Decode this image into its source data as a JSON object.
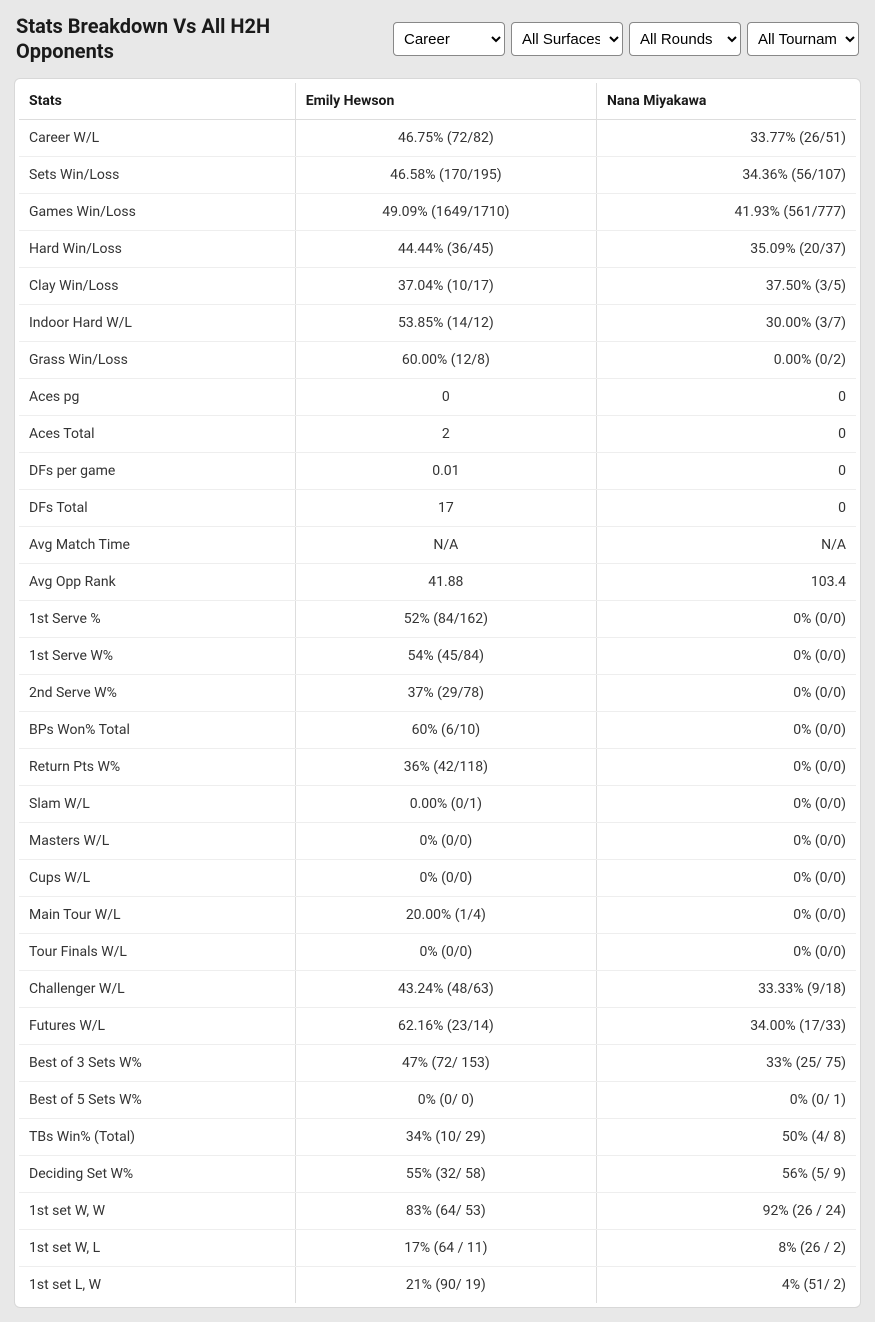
{
  "header": {
    "title": "Stats Breakdown Vs All H2H Opponents"
  },
  "filters": {
    "career": {
      "selected": "Career",
      "options": [
        "Career"
      ]
    },
    "surface": {
      "selected": "All Surfaces",
      "options": [
        "All Surfaces"
      ]
    },
    "round": {
      "selected": "All Rounds",
      "options": [
        "All Rounds"
      ]
    },
    "tournament": {
      "selected": "All Tournaments",
      "options": [
        "All Tournaments"
      ]
    }
  },
  "table": {
    "columns": [
      "Stats",
      "Emily Hewson",
      "Nana Miyakawa"
    ],
    "rows": [
      {
        "stat": "Career W/L",
        "p1": "46.75% (72/82)",
        "p2": "33.77% (26/51)"
      },
      {
        "stat": "Sets Win/Loss",
        "p1": "46.58% (170/195)",
        "p2": "34.36% (56/107)"
      },
      {
        "stat": "Games Win/Loss",
        "p1": "49.09% (1649/1710)",
        "p2": "41.93% (561/777)"
      },
      {
        "stat": "Hard Win/Loss",
        "p1": "44.44% (36/45)",
        "p2": "35.09% (20/37)"
      },
      {
        "stat": "Clay Win/Loss",
        "p1": "37.04% (10/17)",
        "p2": "37.50% (3/5)"
      },
      {
        "stat": "Indoor Hard W/L",
        "p1": "53.85% (14/12)",
        "p2": "30.00% (3/7)"
      },
      {
        "stat": "Grass Win/Loss",
        "p1": "60.00% (12/8)",
        "p2": "0.00% (0/2)"
      },
      {
        "stat": "Aces pg",
        "p1": "0",
        "p2": "0"
      },
      {
        "stat": "Aces Total",
        "p1": "2",
        "p2": "0"
      },
      {
        "stat": "DFs per game",
        "p1": "0.01",
        "p2": "0"
      },
      {
        "stat": "DFs Total",
        "p1": "17",
        "p2": "0"
      },
      {
        "stat": "Avg Match Time",
        "p1": "N/A",
        "p2": "N/A"
      },
      {
        "stat": "Avg Opp Rank",
        "p1": "41.88",
        "p2": "103.4"
      },
      {
        "stat": "1st Serve %",
        "p1": "52% (84/162)",
        "p2": "0% (0/0)"
      },
      {
        "stat": "1st Serve W%",
        "p1": "54% (45/84)",
        "p2": "0% (0/0)"
      },
      {
        "stat": "2nd Serve W%",
        "p1": "37% (29/78)",
        "p2": "0% (0/0)"
      },
      {
        "stat": "BPs Won% Total",
        "p1": "60% (6/10)",
        "p2": "0% (0/0)"
      },
      {
        "stat": "Return Pts W%",
        "p1": "36% (42/118)",
        "p2": "0% (0/0)"
      },
      {
        "stat": "Slam W/L",
        "p1": "0.00% (0/1)",
        "p2": "0% (0/0)"
      },
      {
        "stat": "Masters W/L",
        "p1": "0% (0/0)",
        "p2": "0% (0/0)"
      },
      {
        "stat": "Cups W/L",
        "p1": "0% (0/0)",
        "p2": "0% (0/0)"
      },
      {
        "stat": "Main Tour W/L",
        "p1": "20.00% (1/4)",
        "p2": "0% (0/0)"
      },
      {
        "stat": "Tour Finals W/L",
        "p1": "0% (0/0)",
        "p2": "0% (0/0)"
      },
      {
        "stat": "Challenger W/L",
        "p1": "43.24% (48/63)",
        "p2": "33.33% (9/18)"
      },
      {
        "stat": "Futures W/L",
        "p1": "62.16% (23/14)",
        "p2": "34.00% (17/33)"
      },
      {
        "stat": "Best of 3 Sets W%",
        "p1": "47% (72/ 153)",
        "p2": "33% (25/ 75)"
      },
      {
        "stat": "Best of 5 Sets W%",
        "p1": "0% (0/ 0)",
        "p2": "0% (0/ 1)"
      },
      {
        "stat": "TBs Win% (Total)",
        "p1": "34% (10/ 29)",
        "p2": "50% (4/ 8)"
      },
      {
        "stat": "Deciding Set W%",
        "p1": "55% (32/ 58)",
        "p2": "56% (5/ 9)"
      },
      {
        "stat": "1st set W, W",
        "p1": "83% (64/ 53)",
        "p2": "92% (26 / 24)"
      },
      {
        "stat": "1st set W, L",
        "p1": "17% (64 / 11)",
        "p2": "8% (26 / 2)"
      },
      {
        "stat": "1st set L, W",
        "p1": "21% (90/ 19)",
        "p2": "4% (51/ 2)"
      }
    ]
  }
}
